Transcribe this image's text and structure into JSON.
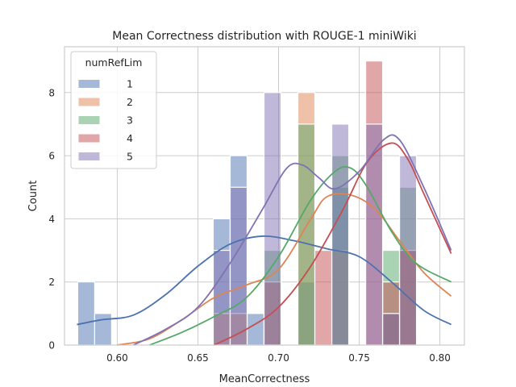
{
  "chart_data": {
    "type": "histogram",
    "title": "Mean Correctness distribution with ROUGE-1 miniWiki",
    "xlabel": "MeanCorrectness",
    "ylabel": "Count",
    "xlim": [
      0.5673,
      0.8152
    ],
    "ylim": [
      0,
      9.45
    ],
    "xticks": [
      "0.60",
      "0.65",
      "0.70",
      "0.75",
      "0.80"
    ],
    "xtick_values": [
      0.6,
      0.65,
      0.7,
      0.75,
      0.8
    ],
    "yticks": [
      "0",
      "2",
      "4",
      "6",
      "8"
    ],
    "ytick_values": [
      0,
      2,
      4,
      6,
      8
    ],
    "grid": true,
    "legend": {
      "title": "numRefLim",
      "placement": "top-left"
    },
    "bin_edges": [
      0.5755,
      0.586,
      0.5965,
      0.607,
      0.6175,
      0.628,
      0.6385,
      0.649,
      0.6595,
      0.67,
      0.6805,
      0.691,
      0.7015,
      0.712,
      0.7225,
      0.733,
      0.7435,
      0.754,
      0.7645,
      0.775,
      0.7855,
      0.796,
      0.8065
    ],
    "hist_edges": [
      0.5755,
      0.586,
      0.5965,
      0.607,
      0.6175,
      0.628,
      0.6385,
      0.649,
      0.6595,
      0.67,
      0.6805,
      0.691,
      0.7015,
      0.712,
      0.7225,
      0.733,
      0.7435,
      0.754,
      0.7645,
      0.775,
      0.7855,
      0.796,
      0.8065
    ],
    "series": [
      {
        "name": "1",
        "color": "#4c72b0",
        "bins": [
          {
            "x0": 0.5755,
            "x1": 0.586,
            "count": 2
          },
          {
            "x0": 0.586,
            "x1": 0.5965,
            "count": 1
          },
          {
            "x0": 0.6595,
            "x1": 0.67,
            "count": 4
          },
          {
            "x0": 0.67,
            "x1": 0.6805,
            "count": 6
          },
          {
            "x0": 0.6805,
            "x1": 0.691,
            "count": 1
          },
          {
            "x0": 0.712,
            "x1": 0.7225,
            "count": 2
          },
          {
            "x0": 0.733,
            "x1": 0.7435,
            "count": 5
          },
          {
            "x0": 0.7645,
            "x1": 0.775,
            "count": 1
          }
        ],
        "kde": [
          [
            0.575,
            0.65
          ],
          [
            0.59,
            0.8
          ],
          [
            0.61,
            0.95
          ],
          [
            0.63,
            1.6
          ],
          [
            0.65,
            2.5
          ],
          [
            0.67,
            3.2
          ],
          [
            0.69,
            3.45
          ],
          [
            0.71,
            3.3
          ],
          [
            0.73,
            3.05
          ],
          [
            0.75,
            2.8
          ],
          [
            0.77,
            2.0
          ],
          [
            0.79,
            1.1
          ],
          [
            0.807,
            0.65
          ]
        ]
      },
      {
        "name": "2",
        "color": "#dd8452",
        "bins": [
          {
            "x0": 0.6595,
            "x1": 0.67,
            "count": 1
          },
          {
            "x0": 0.67,
            "x1": 0.6805,
            "count": 1
          },
          {
            "x0": 0.712,
            "x1": 0.7225,
            "count": 8
          },
          {
            "x0": 0.733,
            "x1": 0.7435,
            "count": 3
          },
          {
            "x0": 0.7645,
            "x1": 0.775,
            "count": 1
          },
          {
            "x0": 0.775,
            "x1": 0.7855,
            "count": 3
          }
        ],
        "kde": [
          [
            0.6,
            0.0
          ],
          [
            0.62,
            0.2
          ],
          [
            0.64,
            0.8
          ],
          [
            0.66,
            1.5
          ],
          [
            0.68,
            1.9
          ],
          [
            0.7,
            2.4
          ],
          [
            0.72,
            4.0
          ],
          [
            0.73,
            4.7
          ],
          [
            0.745,
            4.75
          ],
          [
            0.76,
            4.3
          ],
          [
            0.775,
            3.3
          ],
          [
            0.79,
            2.3
          ],
          [
            0.807,
            1.55
          ]
        ]
      },
      {
        "name": "3",
        "color": "#55a868",
        "bins": [
          {
            "x0": 0.691,
            "x1": 0.7015,
            "count": 3
          },
          {
            "x0": 0.712,
            "x1": 0.7225,
            "count": 7
          },
          {
            "x0": 0.733,
            "x1": 0.7435,
            "count": 6
          },
          {
            "x0": 0.7645,
            "x1": 0.775,
            "count": 3
          },
          {
            "x0": 0.775,
            "x1": 0.7855,
            "count": 5
          }
        ],
        "kde": [
          [
            0.62,
            0.0
          ],
          [
            0.64,
            0.4
          ],
          [
            0.66,
            0.9
          ],
          [
            0.68,
            1.5
          ],
          [
            0.7,
            2.8
          ],
          [
            0.72,
            4.6
          ],
          [
            0.735,
            5.5
          ],
          [
            0.745,
            5.6
          ],
          [
            0.755,
            5.0
          ],
          [
            0.77,
            3.6
          ],
          [
            0.785,
            2.6
          ],
          [
            0.807,
            2.0
          ]
        ]
      },
      {
        "name": "4",
        "color": "#c44e52",
        "bins": [
          {
            "x0": 0.691,
            "x1": 0.7015,
            "count": 2
          },
          {
            "x0": 0.7225,
            "x1": 0.733,
            "count": 3
          },
          {
            "x0": 0.754,
            "x1": 0.7645,
            "count": 9
          },
          {
            "x0": 0.7645,
            "x1": 0.775,
            "count": 2
          },
          {
            "x0": 0.775,
            "x1": 0.7855,
            "count": 3
          }
        ],
        "kde": [
          [
            0.66,
            0.0
          ],
          [
            0.68,
            0.5
          ],
          [
            0.7,
            1.2
          ],
          [
            0.72,
            2.5
          ],
          [
            0.74,
            4.3
          ],
          [
            0.755,
            5.8
          ],
          [
            0.77,
            6.4
          ],
          [
            0.78,
            5.9
          ],
          [
            0.79,
            4.8
          ],
          [
            0.807,
            2.9
          ]
        ]
      },
      {
        "name": "5",
        "color": "#8172b3",
        "bins": [
          {
            "x0": 0.6595,
            "x1": 0.67,
            "count": 3
          },
          {
            "x0": 0.67,
            "x1": 0.6805,
            "count": 5
          },
          {
            "x0": 0.691,
            "x1": 0.7015,
            "count": 8
          },
          {
            "x0": 0.733,
            "x1": 0.7435,
            "count": 7
          },
          {
            "x0": 0.754,
            "x1": 0.7645,
            "count": 7
          },
          {
            "x0": 0.7645,
            "x1": 0.775,
            "count": 1
          },
          {
            "x0": 0.775,
            "x1": 0.7855,
            "count": 6
          }
        ],
        "kde": [
          [
            0.61,
            0.0
          ],
          [
            0.63,
            0.5
          ],
          [
            0.65,
            1.2
          ],
          [
            0.67,
            2.6
          ],
          [
            0.69,
            4.3
          ],
          [
            0.705,
            5.6
          ],
          [
            0.715,
            5.7
          ],
          [
            0.725,
            5.3
          ],
          [
            0.735,
            4.95
          ],
          [
            0.75,
            5.5
          ],
          [
            0.765,
            6.5
          ],
          [
            0.775,
            6.5
          ],
          [
            0.79,
            5.0
          ],
          [
            0.807,
            3.0
          ]
        ]
      }
    ]
  }
}
